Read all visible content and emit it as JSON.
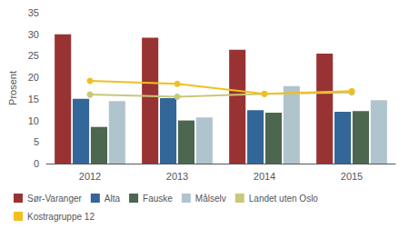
{
  "chart_data": {
    "type": "bar",
    "ylabel": "Prosent",
    "categories": [
      "2012",
      "2013",
      "2014",
      "2015"
    ],
    "series": [
      {
        "name": "Sør-Varanger",
        "type": "bar",
        "color": "#993333",
        "values": [
          30.0,
          29.2,
          26.4,
          25.5
        ]
      },
      {
        "name": "Alta",
        "type": "bar",
        "color": "#336699",
        "values": [
          15.0,
          15.2,
          12.4,
          12.0
        ]
      },
      {
        "name": "Fauske",
        "type": "bar",
        "color": "#4d6650",
        "values": [
          8.5,
          10.0,
          11.8,
          12.2
        ]
      },
      {
        "name": "Målselv",
        "type": "bar",
        "color": "#b0c4cd",
        "values": [
          14.5,
          10.7,
          18.0,
          14.7
        ]
      },
      {
        "name": "Landet uten Oslo",
        "type": "line",
        "marker": "circle",
        "color": "#c8c87a",
        "values": [
          16.0,
          15.5,
          16.2,
          16.5
        ]
      },
      {
        "name": "Kostragruppe 12",
        "type": "line",
        "marker": "circle",
        "color": "#f0c020",
        "values": [
          19.2,
          18.5,
          16.2,
          16.8
        ]
      }
    ],
    "ylim": [
      0,
      35
    ],
    "yticks": [
      0,
      5,
      10,
      15,
      20,
      25,
      30,
      35
    ],
    "grid": false,
    "legend": "bottom"
  }
}
